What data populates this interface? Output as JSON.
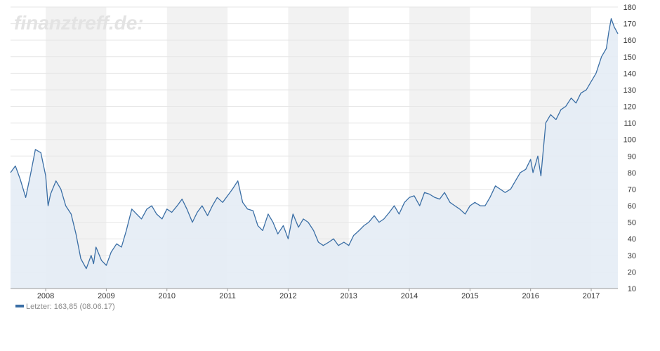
{
  "watermark": "finanztreff.de:",
  "legend": {
    "label": "Letzter:",
    "value": "163,85",
    "date": "(08.06.17)"
  },
  "colors": {
    "line": "#3a6ea5",
    "area": "#e4ecf5",
    "band": "#f2f2f2",
    "grid": "#e6e6e6",
    "axis": "#333333"
  },
  "chart_data": {
    "type": "area",
    "title": "",
    "xlabel": "",
    "ylabel": "",
    "ylim": [
      10,
      180
    ],
    "yticks": [
      "10",
      "20",
      "30",
      "40",
      "50",
      "60",
      "70",
      "80",
      "90",
      "100",
      "110",
      "120",
      "130",
      "140",
      "150",
      "160",
      "170",
      "180"
    ],
    "xticks": [
      "2008",
      "2009",
      "2010",
      "2011",
      "2012",
      "2013",
      "2014",
      "2015",
      "2016",
      "2017"
    ],
    "xlim": [
      2007.42,
      2017.44
    ],
    "y_axis_side": "right",
    "alternating_year_bands": true,
    "grid": true,
    "legend_position": "bottom-left",
    "series": [
      {
        "name": "Letzter",
        "x": [
          2007.42,
          2007.5,
          2007.58,
          2007.67,
          2007.75,
          2007.83,
          2007.92,
          2008.0,
          2008.04,
          2008.08,
          2008.17,
          2008.25,
          2008.33,
          2008.42,
          2008.5,
          2008.58,
          2008.67,
          2008.75,
          2008.79,
          2008.83,
          2008.92,
          2009.0,
          2009.08,
          2009.17,
          2009.25,
          2009.33,
          2009.42,
          2009.5,
          2009.58,
          2009.67,
          2009.75,
          2009.83,
          2009.92,
          2010.0,
          2010.08,
          2010.17,
          2010.25,
          2010.33,
          2010.42,
          2010.5,
          2010.58,
          2010.67,
          2010.75,
          2010.83,
          2010.92,
          2011.0,
          2011.08,
          2011.17,
          2011.25,
          2011.33,
          2011.42,
          2011.5,
          2011.58,
          2011.67,
          2011.75,
          2011.83,
          2011.92,
          2012.0,
          2012.08,
          2012.17,
          2012.25,
          2012.33,
          2012.42,
          2012.5,
          2012.58,
          2012.67,
          2012.75,
          2012.83,
          2012.92,
          2013.0,
          2013.08,
          2013.17,
          2013.25,
          2013.33,
          2013.42,
          2013.5,
          2013.58,
          2013.67,
          2013.75,
          2013.83,
          2013.92,
          2014.0,
          2014.08,
          2014.17,
          2014.25,
          2014.33,
          2014.42,
          2014.5,
          2014.58,
          2014.67,
          2014.75,
          2014.83,
          2014.92,
          2015.0,
          2015.08,
          2015.17,
          2015.25,
          2015.33,
          2015.42,
          2015.5,
          2015.58,
          2015.67,
          2015.75,
          2015.83,
          2015.92,
          2016.0,
          2016.04,
          2016.08,
          2016.12,
          2016.17,
          2016.25,
          2016.33,
          2016.42,
          2016.5,
          2016.58,
          2016.67,
          2016.75,
          2016.83,
          2016.92,
          2017.0,
          2017.08,
          2017.17,
          2017.25,
          2017.29,
          2017.33,
          2017.38,
          2017.44
        ],
        "y": [
          80,
          84,
          76,
          65,
          79,
          94,
          92,
          78,
          60,
          67,
          75,
          70,
          60,
          55,
          43,
          28,
          22,
          30,
          25,
          35,
          27,
          24,
          32,
          37,
          35,
          45,
          58,
          55,
          52,
          58,
          60,
          55,
          52,
          58,
          56,
          60,
          64,
          58,
          50,
          56,
          60,
          54,
          60,
          65,
          62,
          66,
          70,
          75,
          62,
          58,
          57,
          48,
          45,
          55,
          50,
          43,
          48,
          40,
          55,
          47,
          52,
          50,
          45,
          38,
          36,
          38,
          40,
          36,
          38,
          36,
          42,
          45,
          48,
          50,
          54,
          50,
          52,
          56,
          60,
          55,
          62,
          65,
          66,
          60,
          68,
          67,
          65,
          64,
          68,
          62,
          60,
          58,
          55,
          60,
          62,
          60,
          60,
          65,
          72,
          70,
          68,
          70,
          75,
          80,
          82,
          88,
          80,
          85,
          90,
          78,
          110,
          115,
          112,
          118,
          120,
          125,
          122,
          128,
          130,
          135,
          140,
          150,
          155,
          165,
          173,
          168,
          163.85
        ]
      }
    ]
  }
}
